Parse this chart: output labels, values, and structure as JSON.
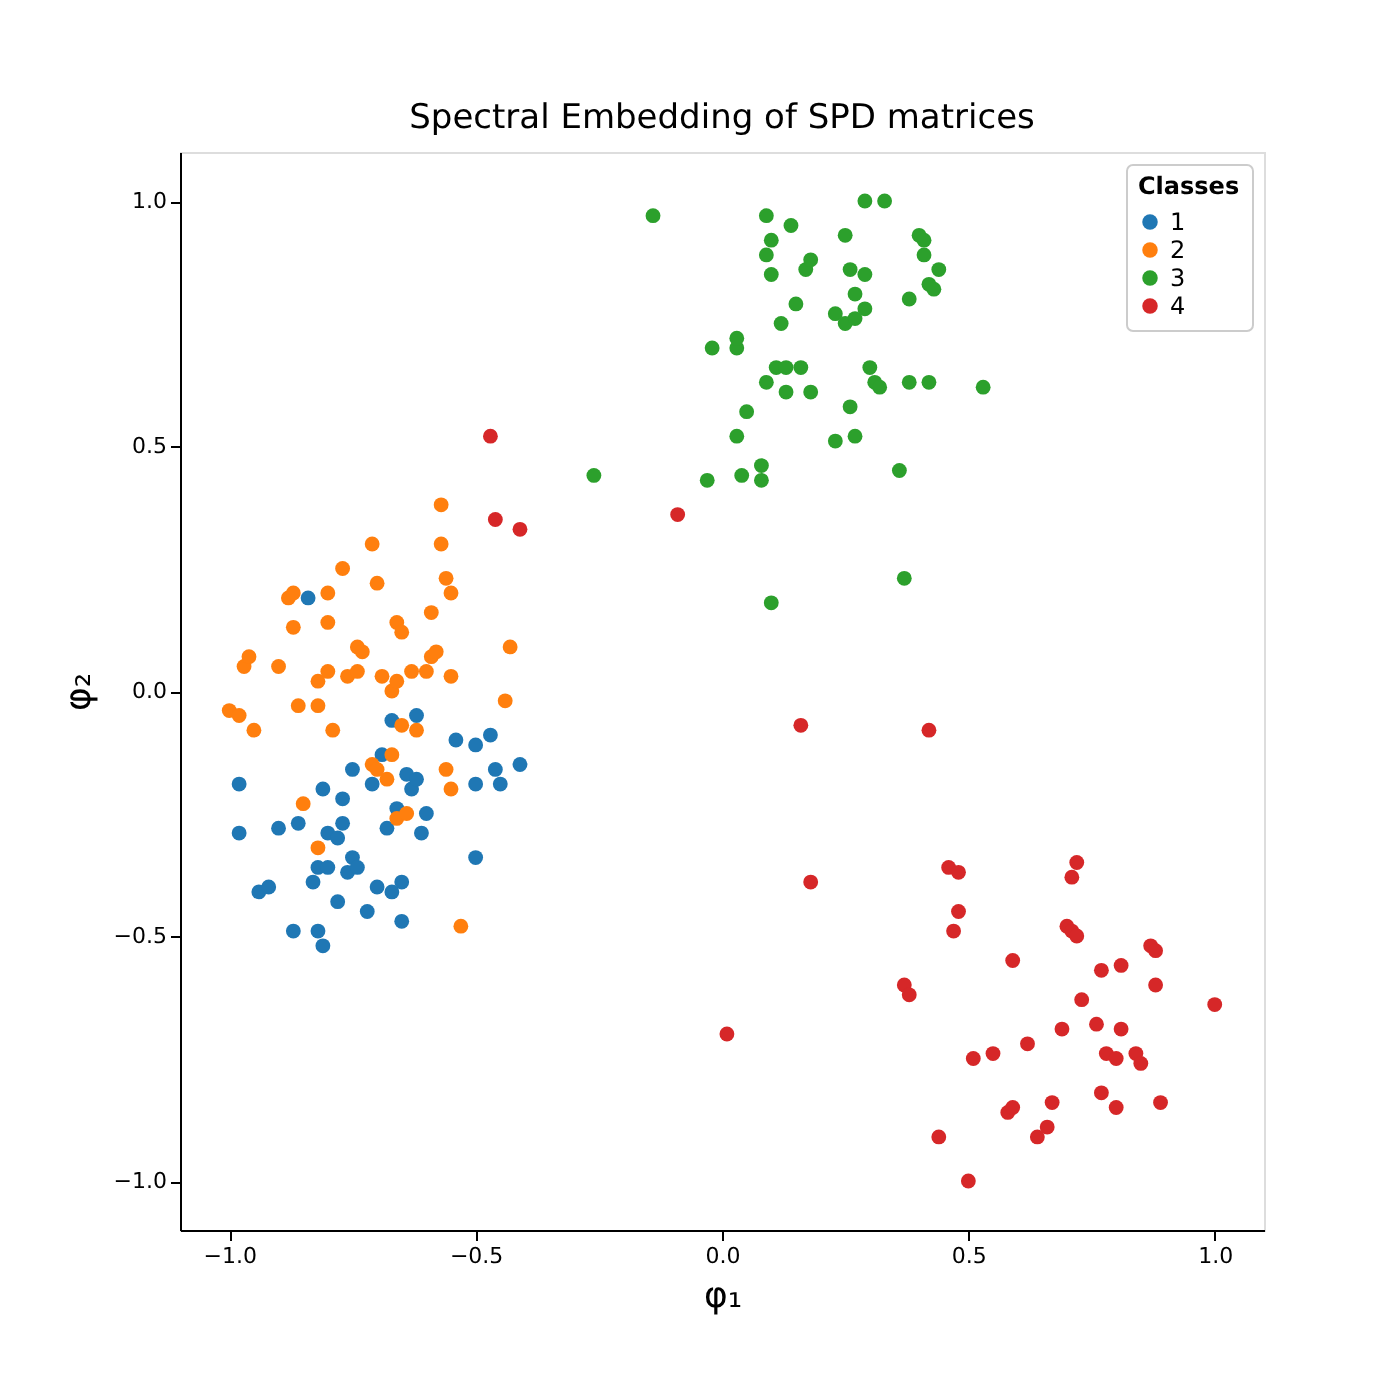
{
  "chart_data": {
    "type": "scatter",
    "title": "Spectral Embedding of SPD matrices",
    "xlabel": "φ₁",
    "ylabel": "φ₂",
    "legend_title": "Classes",
    "legend": "top right",
    "grid": false,
    "marker": "circle",
    "xlim": [
      -1.1,
      1.1
    ],
    "ylim": [
      -1.1,
      1.1
    ],
    "xticks": [
      {
        "value": -1.0,
        "label": "−1.0"
      },
      {
        "value": -0.5,
        "label": "−0.5"
      },
      {
        "value": 0.0,
        "label": "0.0"
      },
      {
        "value": 0.5,
        "label": "0.5"
      },
      {
        "value": 1.0,
        "label": "1.0"
      }
    ],
    "yticks": [
      {
        "value": -1.0,
        "label": "−1.0"
      },
      {
        "value": -0.5,
        "label": "−0.5"
      },
      {
        "value": 0.0,
        "label": "0.0"
      },
      {
        "value": 0.5,
        "label": "0.5"
      },
      {
        "value": 1.0,
        "label": "1.0"
      }
    ],
    "series": [
      {
        "name": "1",
        "color": "#1f77b4",
        "x": [
          -0.98,
          -0.98,
          -0.94,
          -0.92,
          -0.9,
          -0.87,
          -0.86,
          -0.84,
          -0.83,
          -0.82,
          -0.82,
          -0.81,
          -0.81,
          -0.8,
          -0.8,
          -0.78,
          -0.78,
          -0.77,
          -0.77,
          null,
          -0.76,
          -0.75,
          -0.75,
          -0.74,
          -0.72,
          null,
          -0.7,
          -0.69,
          -0.68,
          -0.67,
          -0.67,
          -0.66,
          -0.65,
          -0.65,
          -0.64,
          -0.63,
          null,
          -0.62,
          -0.62,
          -0.61,
          -0.6,
          -0.54,
          -0.5,
          -0.5,
          -0.5,
          -0.47,
          -0.46,
          -0.45,
          -0.41,
          -0.71
        ],
        "values": [
          -0.19,
          -0.29,
          -0.41,
          -0.4,
          -0.28,
          -0.49,
          -0.27,
          0.19,
          -0.39,
          -0.36,
          -0.49,
          -0.52,
          -0.2,
          -0.29,
          -0.36,
          -0.43,
          -0.3,
          -0.22,
          -0.27,
          null,
          -0.37,
          -0.34,
          -0.16,
          -0.36,
          -0.45,
          null,
          -0.4,
          -0.13,
          -0.28,
          -0.06,
          -0.41,
          -0.24,
          -0.39,
          -0.47,
          -0.17,
          -0.2,
          null,
          -0.05,
          -0.18,
          -0.29,
          -0.25,
          -0.1,
          -0.34,
          -0.11,
          -0.19,
          -0.09,
          -0.16,
          -0.19,
          -0.15,
          -0.19
        ]
      },
      {
        "name": "2",
        "color": "#ff7f0e",
        "x": [
          -1.0,
          -0.98,
          -0.97,
          -0.96,
          -0.95,
          -0.9,
          -0.88,
          -0.87,
          -0.87,
          -0.86,
          -0.85,
          -0.82,
          -0.82,
          -0.8,
          -0.8,
          -0.8,
          -0.79,
          -0.77,
          -0.76,
          -0.74,
          -0.74,
          -0.73,
          -0.71,
          -0.71,
          -0.7,
          -0.7,
          -0.69,
          -0.68,
          -0.67,
          -0.67,
          -0.66,
          -0.66,
          -0.65,
          -0.65,
          -0.63,
          -0.62,
          -0.6,
          -0.59,
          -0.59,
          -0.58,
          -0.57,
          -0.57,
          -0.56,
          -0.56,
          -0.55,
          -0.55,
          -0.55,
          -0.53,
          -0.43,
          -0.44,
          -0.82,
          -0.66,
          -0.64
        ],
        "values": [
          -0.04,
          -0.05,
          0.05,
          0.07,
          -0.08,
          0.05,
          0.19,
          0.2,
          0.13,
          -0.03,
          -0.23,
          0.02,
          -0.03,
          0.2,
          0.14,
          0.04,
          -0.08,
          0.25,
          0.03,
          0.09,
          0.04,
          0.08,
          0.3,
          -0.15,
          0.22,
          -0.16,
          0.03,
          -0.18,
          0.0,
          -0.13,
          0.14,
          0.02,
          0.12,
          -0.07,
          0.04,
          -0.08,
          0.04,
          0.16,
          0.07,
          0.08,
          0.38,
          0.3,
          0.23,
          -0.16,
          -0.2,
          0.2,
          0.03,
          -0.48,
          0.09,
          -0.02,
          -0.32,
          -0.26,
          -0.25
        ]
      },
      {
        "name": "3",
        "color": "#2ca02c",
        "x": [
          -0.14,
          -0.26,
          -0.03,
          -0.02,
          0.03,
          0.03,
          0.03,
          0.04,
          0.05,
          null,
          0.08,
          0.08,
          0.09,
          0.09,
          0.1,
          0.1,
          0.09,
          0.11,
          0.12,
          0.13,
          0.13,
          0.14,
          0.15,
          0.16,
          0.17,
          0.18,
          0.18,
          0.1,
          0.23,
          0.23,
          0.25,
          0.25,
          0.26,
          0.26,
          0.27,
          0.27,
          0.27,
          0.29,
          0.29,
          0.29,
          0.3,
          0.31,
          0.32,
          0.33,
          0.36,
          0.37,
          0.38,
          0.38,
          0.4,
          0.41,
          0.41,
          0.42,
          0.42,
          0.43,
          0.44,
          0.53
        ],
        "values": [
          0.97,
          0.44,
          0.43,
          0.7,
          0.7,
          0.72,
          0.52,
          0.44,
          0.57,
          null,
          0.43,
          0.46,
          0.97,
          0.89,
          0.85,
          0.92,
          0.63,
          0.66,
          0.75,
          0.61,
          0.66,
          0.95,
          0.79,
          0.66,
          0.86,
          0.88,
          0.61,
          0.18,
          0.77,
          0.51,
          0.75,
          0.93,
          0.58,
          0.86,
          0.81,
          0.76,
          0.52,
          1.0,
          0.78,
          0.85,
          0.66,
          0.63,
          0.62,
          1.0,
          0.45,
          0.23,
          0.8,
          0.63,
          0.93,
          0.92,
          0.89,
          0.83,
          0.63,
          0.82,
          0.86,
          0.62
        ]
      },
      {
        "name": "4",
        "color": "#d62728",
        "x": [
          -0.47,
          -0.46,
          -0.41,
          -0.09,
          0.16,
          0.42,
          0.18,
          0.01,
          0.46,
          0.48,
          0.48,
          0.47,
          0.59,
          0.37,
          0.38,
          0.5,
          0.44,
          0.51,
          0.55,
          0.58,
          0.59,
          0.62,
          0.64,
          0.66,
          0.67,
          0.69,
          0.7,
          0.71,
          0.72,
          0.72,
          0.71,
          0.73,
          0.76,
          0.77,
          0.77,
          0.78,
          0.8,
          0.81,
          0.8,
          0.81,
          0.84,
          0.85,
          0.87,
          0.88,
          0.88,
          0.89,
          1.0
        ],
        "values": [
          0.52,
          0.35,
          0.33,
          0.36,
          -0.07,
          -0.08,
          -0.39,
          -0.7,
          -0.36,
          -0.37,
          -0.45,
          -0.49,
          -0.55,
          -0.6,
          -0.62,
          -1.0,
          -0.91,
          -0.75,
          -0.74,
          -0.86,
          -0.85,
          -0.72,
          -0.91,
          -0.89,
          -0.84,
          -0.69,
          -0.48,
          -0.49,
          -0.5,
          -0.35,
          -0.38,
          -0.63,
          -0.68,
          -0.57,
          -0.82,
          -0.74,
          -0.75,
          -0.69,
          -0.85,
          -0.56,
          -0.74,
          -0.76,
          -0.52,
          -0.53,
          -0.6,
          -0.84,
          -0.64
        ]
      }
    ]
  }
}
